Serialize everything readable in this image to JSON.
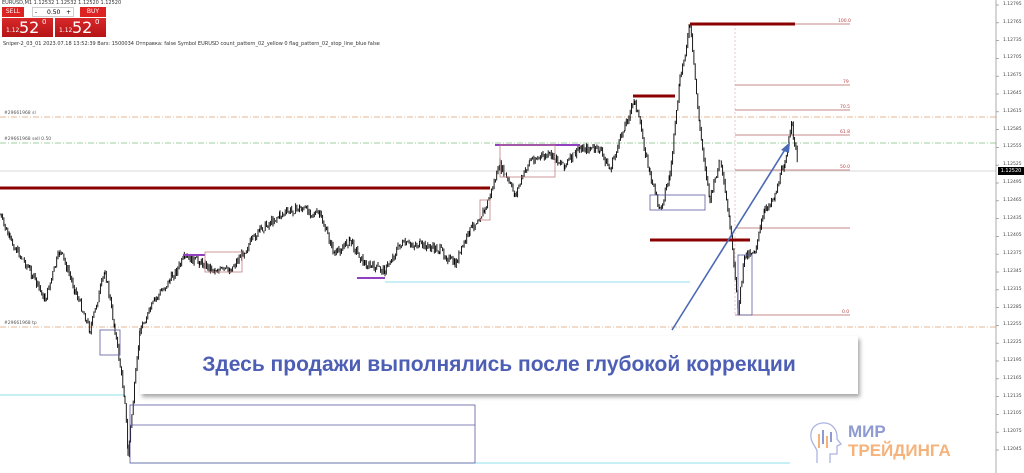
{
  "window": {
    "header": "EURUSD,M1  1.12532 1.12532 1.12520 1.12520"
  },
  "trade_panel": {
    "sell_label": "SELL",
    "buy_label": "BUY",
    "lot": "0.50",
    "minus": "-",
    "plus": "+",
    "sell_small": "1.12",
    "sell_big": "52",
    "sell_sup": "0",
    "buy_small": "1.12",
    "buy_big": "52",
    "buy_sup": "0"
  },
  "info_line": "Sniper-2_03_01   2023.07.18 13:52:39   Bars: 1500034   Отправка: false   Symbol EURUSD   count_pattern_02_yellow 0   flag_pattern_02_stop_line_blue false",
  "order_labels": {
    "sl": "#29661968 sl",
    "sell": "#29661968 sell 0.50",
    "tp": "#29661968 tp"
  },
  "fib_levels": [
    "100.0",
    "79",
    "70.5",
    "61.8",
    "50.0",
    "0.0"
  ],
  "caption": "Здесь продажи выполнялись после глубокой коррекции",
  "logo": {
    "line1": "МИР",
    "line2": "ТРЕЙДИНГА"
  },
  "colors": {
    "candles": "#000000",
    "levels": "#8b0000",
    "zones": "#5a5aa0",
    "arrow": "#4a6ab5",
    "cyan": "#8fe0e8",
    "sl_line": "#e0a070",
    "sell_line": "#80c080"
  },
  "chart_data": {
    "type": "candlestick",
    "symbol": "EURUSD",
    "timeframe": "M1",
    "current_price": "1.12520",
    "ylim": [
      1.1203,
      1.128
    ],
    "y_ticks": [
      "1.12795",
      "1.12765",
      "1.12735",
      "1.12705",
      "1.12675",
      "1.12645",
      "1.12615",
      "1.12585",
      "1.12555",
      "1.12525",
      "1.12495",
      "1.12465",
      "1.12435",
      "1.12405",
      "1.12375",
      "1.12345",
      "1.12315",
      "1.12285",
      "1.12255",
      "1.12225",
      "1.12195",
      "1.12165",
      "1.12135",
      "1.12105",
      "1.12075",
      "1.12045"
    ],
    "close_path": [
      1.12441,
      1.12399,
      1.12348,
      1.12298,
      1.12382,
      1.12315,
      1.12247,
      1.12348,
      1.12247,
      1.12129,
      1.12037,
      1.12247,
      1.12298,
      1.12332,
      1.12369,
      1.12362,
      1.12348,
      1.12348,
      1.12382,
      1.12416,
      1.12441,
      1.12453,
      1.12441,
      1.12374,
      1.12399,
      1.12357,
      1.12348,
      1.12391,
      1.12391,
      1.12382,
      1.12357,
      1.12416,
      1.1245,
      1.12525,
      1.12475,
      1.12534,
      1.12542,
      1.12525,
      1.12554,
      1.12551,
      1.12517,
      1.12593,
      1.12635,
      1.12509,
      1.1245,
      1.12509,
      1.12669,
      1.12761,
      1.12584,
      1.12466,
      1.12534,
      1.12424,
      1.12281,
      1.12374,
      1.12382,
      1.1245,
      1.12475,
      1.12534,
      1.12593,
      1.12525
    ]
  }
}
